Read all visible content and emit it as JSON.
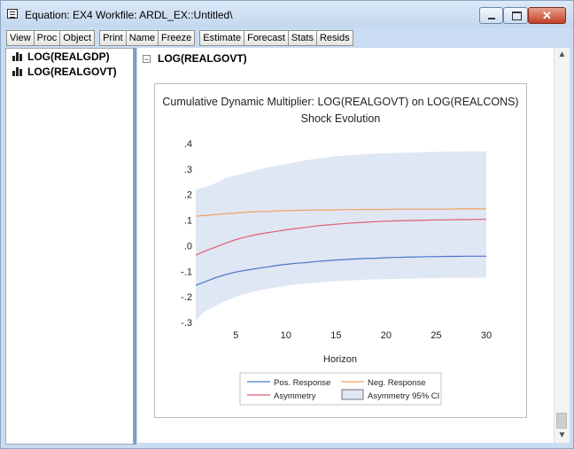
{
  "window": {
    "title": "Equation: EX4   Workfile: ARDL_EX::Untitled\\",
    "controls": {
      "minimize": "",
      "maximize": "",
      "close": "✕"
    }
  },
  "toolbar": [
    "View",
    "Proc",
    "Object",
    "Print",
    "Name",
    "Freeze",
    "Estimate",
    "Forecast",
    "Stats",
    "Resids"
  ],
  "tree": [
    {
      "label": "LOG(REALGDP)"
    },
    {
      "label": "LOG(REALGOVT)"
    }
  ],
  "section": {
    "expander": "−",
    "title": "LOG(REALGOVT)"
  },
  "scrollbar": {
    "up": "▲",
    "down": "▼"
  },
  "chart_data": {
    "type": "line",
    "title": "Cumulative Dynamic Multiplier: LOG(REALGOVT) on LOG(REALCONS)",
    "subtitle": "Shock Evolution",
    "xlabel": "Horizon",
    "ylabel": "",
    "xlim": [
      1,
      30
    ],
    "ylim": [
      -0.3,
      0.4
    ],
    "x_ticks": [
      5,
      10,
      15,
      20,
      25,
      30
    ],
    "y_ticks": [
      {
        "value": 0.4,
        "label": ".4"
      },
      {
        "value": 0.3,
        "label": ".3"
      },
      {
        "value": 0.2,
        "label": ".2"
      },
      {
        "value": 0.1,
        "label": ".1"
      },
      {
        "value": 0.0,
        "label": ".0"
      },
      {
        "value": -0.1,
        "label": "-.1"
      },
      {
        "value": -0.2,
        "label": "-.2"
      },
      {
        "value": -0.3,
        "label": "-.3"
      }
    ],
    "grid": false,
    "x": [
      1,
      2,
      3,
      4,
      5,
      6,
      7,
      8,
      9,
      10,
      11,
      12,
      13,
      14,
      15,
      16,
      17,
      18,
      19,
      20,
      21,
      22,
      23,
      24,
      25,
      26,
      27,
      28,
      29,
      30
    ],
    "series": [
      {
        "name": "Pos. Response",
        "color": "#4a77c9",
        "values": [
          -0.155,
          -0.14,
          -0.125,
          -0.113,
          -0.103,
          -0.096,
          -0.09,
          -0.084,
          -0.078,
          -0.073,
          -0.069,
          -0.066,
          -0.062,
          -0.059,
          -0.056,
          -0.054,
          -0.052,
          -0.05,
          -0.049,
          -0.047,
          -0.046,
          -0.045,
          -0.044,
          -0.043,
          -0.043,
          -0.042,
          -0.042,
          -0.041,
          -0.041,
          -0.041
        ]
      },
      {
        "name": "Neg. Response",
        "color": "#f0a060",
        "values": [
          0.115,
          0.119,
          0.122,
          0.125,
          0.128,
          0.131,
          0.133,
          0.134,
          0.136,
          0.137,
          0.138,
          0.139,
          0.139,
          0.14,
          0.14,
          0.141,
          0.141,
          0.142,
          0.142,
          0.142,
          0.143,
          0.143,
          0.143,
          0.143,
          0.143,
          0.143,
          0.144,
          0.144,
          0.144,
          0.144
        ]
      },
      {
        "name": "Asymmetry",
        "color": "#e06070",
        "values": [
          -0.037,
          -0.02,
          -0.005,
          0.01,
          0.024,
          0.034,
          0.043,
          0.05,
          0.056,
          0.062,
          0.067,
          0.072,
          0.077,
          0.081,
          0.084,
          0.087,
          0.09,
          0.092,
          0.094,
          0.096,
          0.097,
          0.098,
          0.099,
          0.1,
          0.101,
          0.101,
          0.102,
          0.102,
          0.103,
          0.103
        ]
      }
    ],
    "band": {
      "name": "Asymmetry 95% CI",
      "color": "#dfe6f4",
      "upper": [
        0.22,
        0.23,
        0.245,
        0.265,
        0.275,
        0.285,
        0.295,
        0.305,
        0.313,
        0.32,
        0.327,
        0.334,
        0.34,
        0.345,
        0.35,
        0.353,
        0.356,
        0.358,
        0.36,
        0.362,
        0.363,
        0.364,
        0.365,
        0.366,
        0.367,
        0.368,
        0.368,
        0.369,
        0.369,
        0.37
      ],
      "lower": [
        -0.29,
        -0.255,
        -0.235,
        -0.215,
        -0.2,
        -0.188,
        -0.178,
        -0.17,
        -0.163,
        -0.157,
        -0.152,
        -0.148,
        -0.145,
        -0.142,
        -0.139,
        -0.137,
        -0.135,
        -0.133,
        -0.132,
        -0.131,
        -0.13,
        -0.129,
        -0.128,
        -0.127,
        -0.127,
        -0.126,
        -0.126,
        -0.126,
        -0.125,
        -0.125
      ]
    },
    "legend": {
      "position": "bottom",
      "entries": [
        {
          "label": "Pos. Response",
          "kind": "line",
          "color": "#4a77c9"
        },
        {
          "label": "Neg. Response",
          "kind": "line",
          "color": "#f0a060"
        },
        {
          "label": "Asymmetry",
          "kind": "line",
          "color": "#e06070"
        },
        {
          "label": "Asymmetry 95% CI",
          "kind": "box",
          "color": "#dfe6f4"
        }
      ]
    }
  }
}
